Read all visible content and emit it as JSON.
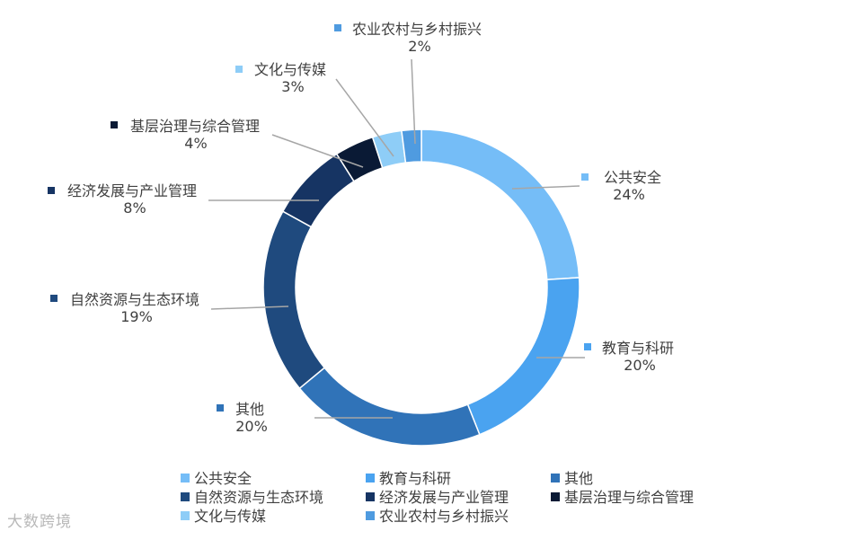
{
  "chart_data": {
    "type": "pie",
    "subtype": "donut",
    "slices": [
      {
        "label": "公共安全",
        "value": 24,
        "display": "24%",
        "color": "#75bdf7"
      },
      {
        "label": "教育与科研",
        "value": 20,
        "display": "20%",
        "color": "#4aa3f0"
      },
      {
        "label": "其他",
        "value": 20,
        "display": "20%",
        "color": "#3073b8"
      },
      {
        "label": "自然资源与生态环境",
        "value": 19,
        "display": "19%",
        "color": "#1f4a7e"
      },
      {
        "label": "经济发展与产业管理",
        "value": 8,
        "display": "8%",
        "color": "#163463"
      },
      {
        "label": "基层治理与综合管理",
        "value": 4,
        "display": "4%",
        "color": "#0a1a35"
      },
      {
        "label": "文化与传媒",
        "value": 3,
        "display": "3%",
        "color": "#8ecdf7"
      },
      {
        "label": "农业农村与乡村振兴",
        "value": 2,
        "display": "2%",
        "color": "#4f9be0"
      }
    ],
    "legend_position": "bottom",
    "leader_line_color": "#a6a6a6"
  },
  "watermark": "大数跨境"
}
